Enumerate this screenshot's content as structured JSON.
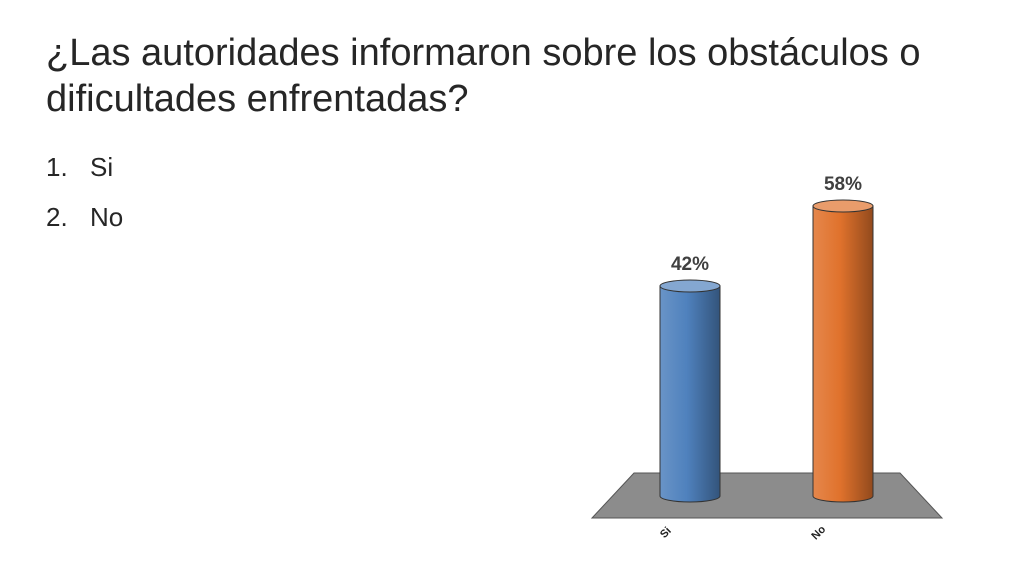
{
  "slide": {
    "title": "¿Las autoridades informaron sobre los obstáculos o dificultades enfrentadas?",
    "options": [
      {
        "num": "1.",
        "label": "Si"
      },
      {
        "num": "2.",
        "label": "No"
      }
    ]
  },
  "chart_data": {
    "type": "bar",
    "style": "3d-cylinder",
    "categories": [
      "Si",
      "No"
    ],
    "values": [
      42,
      58
    ],
    "value_labels": [
      "42%",
      "58%"
    ],
    "ylim": [
      0,
      60
    ],
    "grid": false,
    "legend": "none",
    "colors": [
      "#4f81bd",
      "#e0722c"
    ],
    "floor_color": "#8c8c8c"
  }
}
